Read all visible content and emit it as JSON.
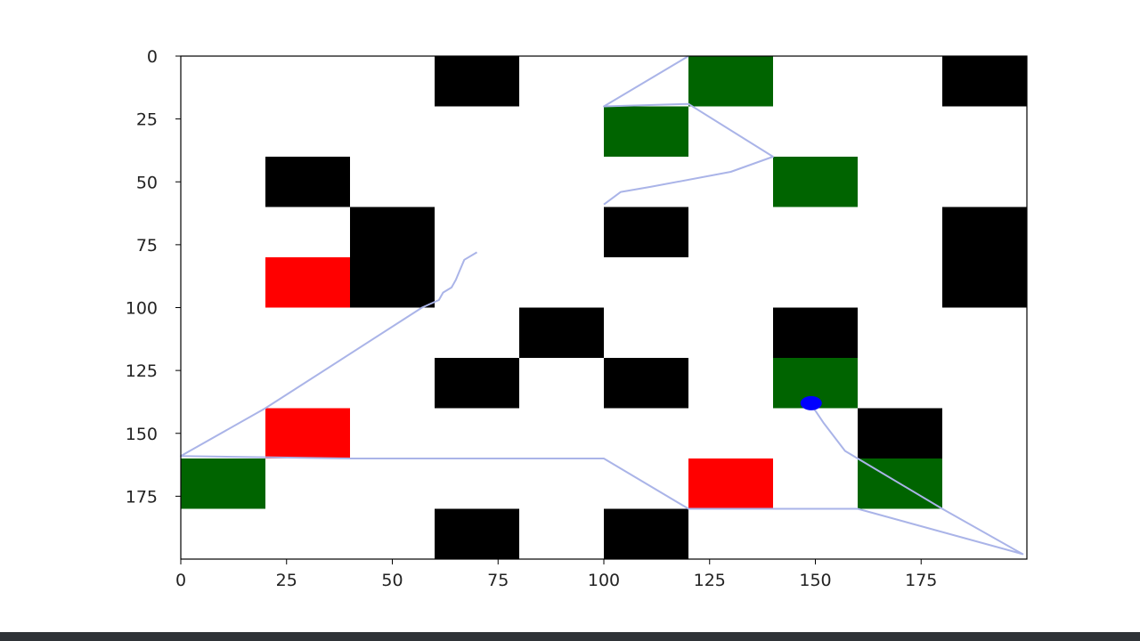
{
  "chart_data": {
    "type": "heatmap",
    "title": "",
    "xlabel": "",
    "ylabel": "",
    "xlim": [
      0,
      200
    ],
    "ylim": [
      200,
      0
    ],
    "grid": false,
    "x_ticks": [
      "0",
      "25",
      "50",
      "75",
      "100",
      "125",
      "150",
      "175"
    ],
    "y_ticks": [
      "0",
      "25",
      "50",
      "75",
      "100",
      "125",
      "150",
      "175"
    ],
    "cell_size": 20,
    "colors": {
      "obstacle": "#000000",
      "goal": "#006400",
      "hazard": "#ff0000",
      "agent": "#0000ff",
      "path": "#aab4e8"
    },
    "obstacles": [
      [
        60,
        0
      ],
      [
        180,
        0
      ],
      [
        20,
        40
      ],
      [
        40,
        60
      ],
      [
        100,
        60
      ],
      [
        180,
        60
      ],
      [
        40,
        80
      ],
      [
        180,
        80
      ],
      [
        80,
        100
      ],
      [
        140,
        100
      ],
      [
        60,
        120
      ],
      [
        100,
        120
      ],
      [
        160,
        140
      ],
      [
        60,
        180
      ],
      [
        100,
        180
      ]
    ],
    "goals": [
      [
        120,
        0
      ],
      [
        100,
        20
      ],
      [
        140,
        40
      ],
      [
        140,
        120
      ],
      [
        0,
        160
      ],
      [
        160,
        160
      ]
    ],
    "hazards": [
      [
        20,
        80
      ],
      [
        20,
        140
      ],
      [
        120,
        160
      ]
    ],
    "agent": [
      149,
      138
    ],
    "path": [
      [
        70,
        78
      ],
      [
        67,
        81
      ],
      [
        66,
        85
      ],
      [
        65,
        89
      ],
      [
        64,
        92
      ],
      [
        62,
        94
      ],
      [
        61,
        97
      ],
      [
        57,
        100
      ],
      [
        20,
        140
      ],
      [
        0,
        159
      ],
      [
        40,
        160
      ],
      [
        100,
        160
      ],
      [
        120,
        180
      ],
      [
        160,
        180
      ],
      [
        199,
        198
      ],
      [
        180,
        180
      ],
      [
        160,
        160
      ],
      [
        157,
        157
      ],
      [
        152,
        146
      ],
      [
        150,
        141
      ],
      [
        149,
        139
      ]
    ],
    "path2": [
      [
        100,
        59
      ],
      [
        104,
        54
      ],
      [
        111,
        52
      ],
      [
        130,
        46
      ],
      [
        140,
        40
      ],
      [
        120,
        19
      ],
      [
        100,
        20
      ],
      [
        120,
        0
      ]
    ]
  }
}
